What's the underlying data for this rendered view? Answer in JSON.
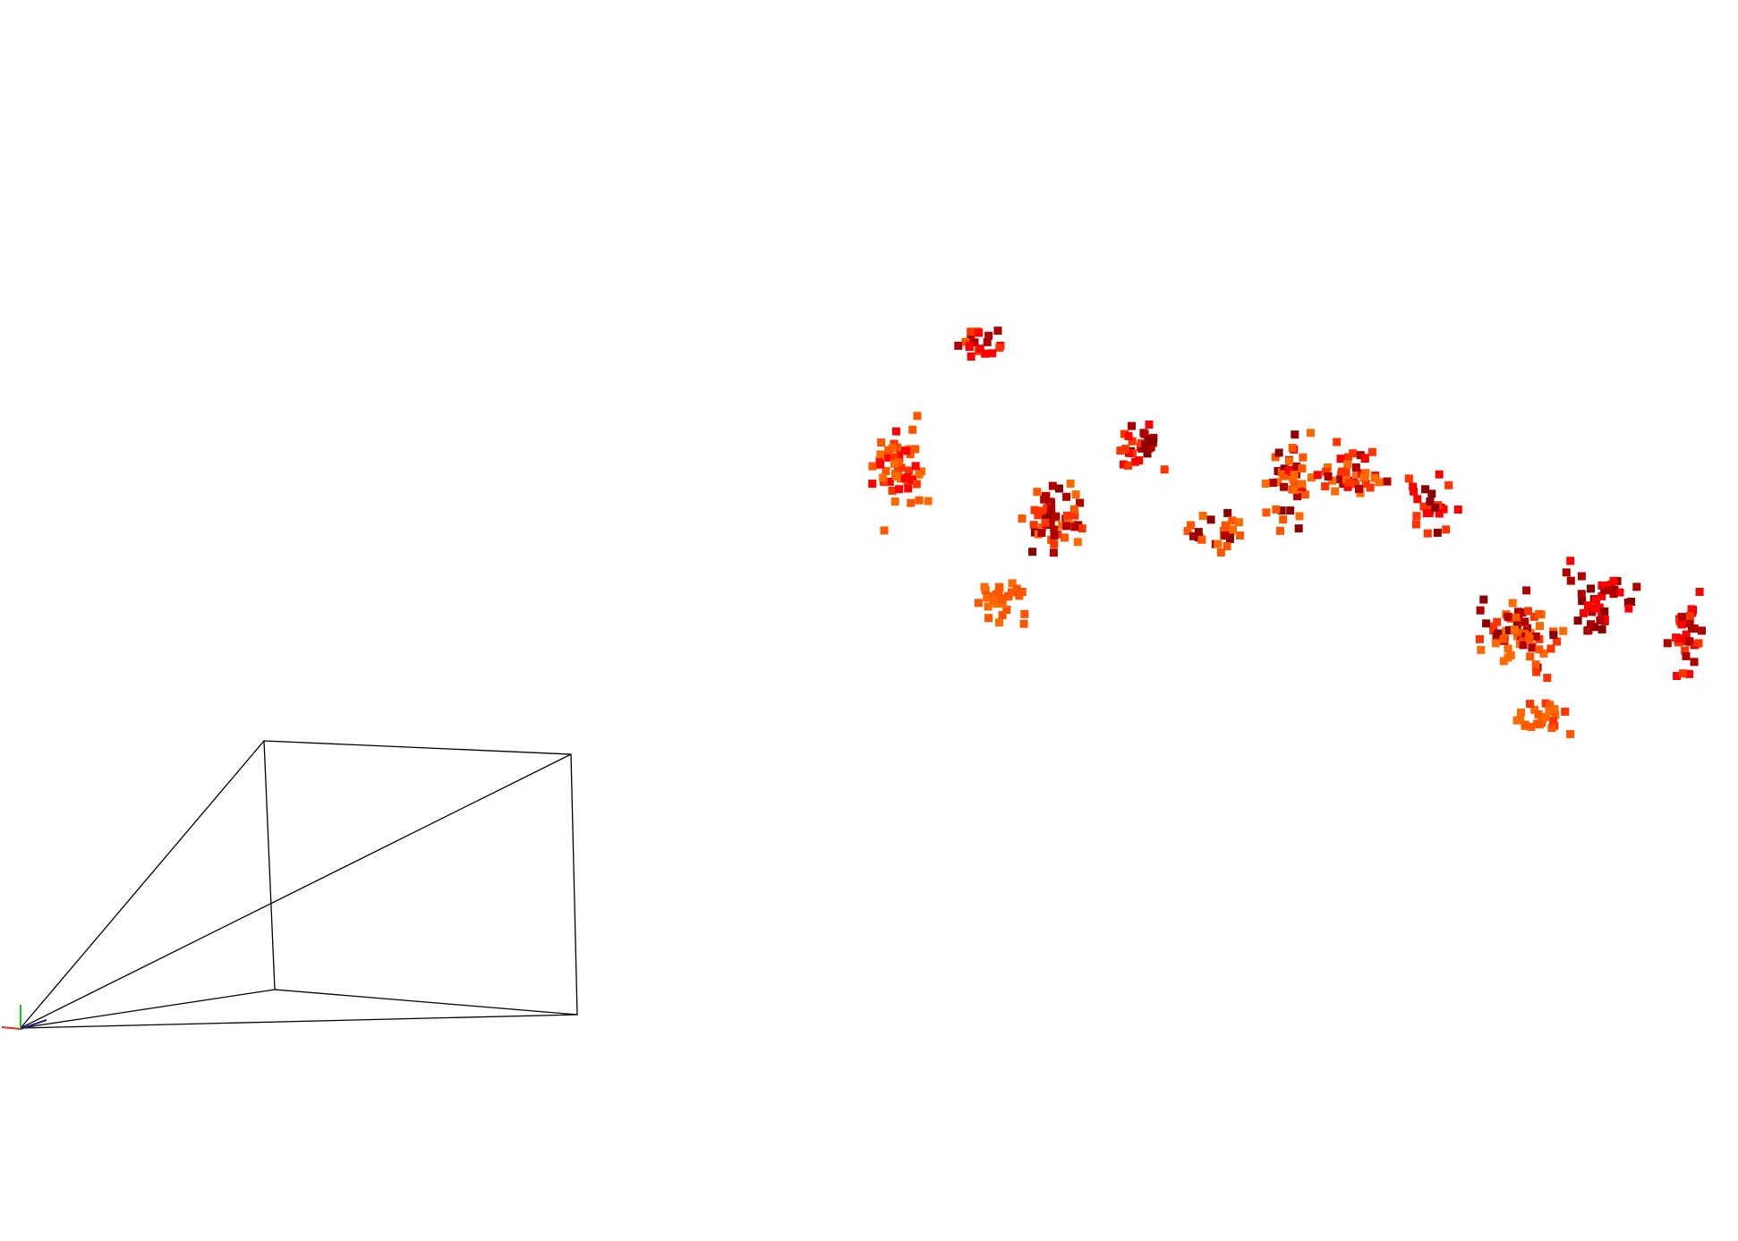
{
  "viewer": {
    "background": "#ffffff"
  },
  "axes_gizmo": {
    "x_color": "#e03020",
    "y_color": "#20c020",
    "z_color": "#202080"
  },
  "camera_frustum": {
    "line_color": "#000000"
  },
  "point_cloud": {
    "marker": "square",
    "palette": [
      "#8b0000",
      "#b00000",
      "#ff0000",
      "#ff3300",
      "#ff5500",
      "#ff6a00"
    ]
  }
}
